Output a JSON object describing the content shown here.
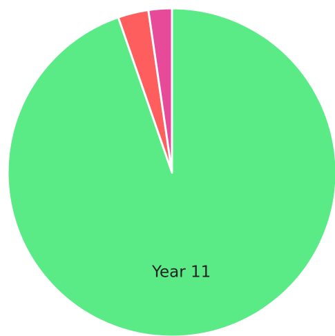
{
  "chart_data": {
    "type": "pie",
    "categories": [
      "Year 11",
      null,
      null
    ],
    "values": [
      94.7,
      3,
      2.3
    ],
    "colors": [
      "#5aeb86",
      "#ff5e5e",
      "#e84a9a"
    ]
  }
}
